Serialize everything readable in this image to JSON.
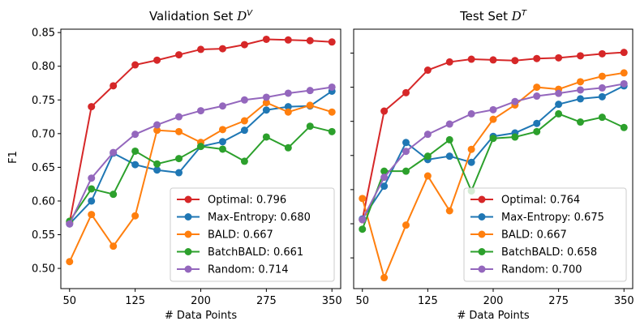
{
  "chart_data": {
    "type": "line",
    "x": [
      50,
      75,
      100,
      125,
      150,
      175,
      200,
      225,
      250,
      275,
      300,
      325,
      350
    ],
    "xticks": [
      50,
      125,
      200,
      275,
      350
    ],
    "xlabel": "# Data Points",
    "ylabel": "F1",
    "colors": {
      "Optimal": "#d62728",
      "Max-Entropy": "#1f77b4",
      "BALD": "#ff7f0e",
      "BatchBALD": "#2ca02c",
      "Random": "#9467bd"
    },
    "panels": [
      {
        "title": "Validation Set",
        "title_symbol": "D",
        "title_sup": "V",
        "ylim": [
          0.47,
          0.855
        ],
        "yticks": [
          0.5,
          0.55,
          0.6,
          0.65,
          0.7,
          0.75,
          0.8,
          0.85
        ],
        "show_yticklabels": true,
        "series": [
          {
            "name": "Optimal",
            "legend": "Optimal: 0.796",
            "values": [
              0.568,
              0.74,
              0.771,
              0.802,
              0.809,
              0.817,
              0.825,
              0.826,
              0.832,
              0.84,
              0.839,
              0.838,
              0.836
            ]
          },
          {
            "name": "Max-Entropy",
            "legend": "Max-Entropy: 0.680",
            "values": [
              0.566,
              0.6,
              0.671,
              0.654,
              0.646,
              0.642,
              0.681,
              0.688,
              0.705,
              0.735,
              0.74,
              0.741,
              0.763
            ]
          },
          {
            "name": "BALD",
            "legend": "BALD: 0.667",
            "values": [
              0.51,
              0.58,
              0.533,
              0.578,
              0.705,
              0.703,
              0.687,
              0.706,
              0.719,
              0.746,
              0.732,
              0.742,
              0.732
            ]
          },
          {
            "name": "BatchBALD",
            "legend": "BatchBALD: 0.661",
            "values": [
              0.57,
              0.618,
              0.61,
              0.674,
              0.655,
              0.663,
              0.681,
              0.677,
              0.659,
              0.695,
              0.679,
              0.711,
              0.703
            ]
          },
          {
            "name": "Random",
            "legend": "Random: 0.714",
            "values": [
              0.566,
              0.634,
              0.672,
              0.699,
              0.713,
              0.725,
              0.734,
              0.741,
              0.75,
              0.754,
              0.76,
              0.764,
              0.769
            ]
          }
        ]
      },
      {
        "title": "Test Set",
        "title_symbol": "D",
        "title_sup": "T",
        "ylim": [
          0.455,
          0.835
        ],
        "yticks": [
          0.5,
          0.55,
          0.6,
          0.65,
          0.7,
          0.75,
          0.8
        ],
        "show_yticklabels": false,
        "series": [
          {
            "name": "Optimal",
            "legend": "Optimal: 0.764",
            "values": [
              0.556,
              0.715,
              0.742,
              0.775,
              0.787,
              0.791,
              0.79,
              0.789,
              0.792,
              0.793,
              0.796,
              0.799,
              0.801
            ]
          },
          {
            "name": "Max-Entropy",
            "legend": "Max-Entropy: 0.675",
            "values": [
              0.557,
              0.605,
              0.669,
              0.644,
              0.649,
              0.64,
              0.678,
              0.683,
              0.697,
              0.725,
              0.733,
              0.736,
              0.752
            ]
          },
          {
            "name": "BALD",
            "legend": "BALD: 0.667",
            "values": [
              0.587,
              0.471,
              0.548,
              0.62,
              0.569,
              0.659,
              0.703,
              0.724,
              0.75,
              0.747,
              0.758,
              0.766,
              0.771
            ]
          },
          {
            "name": "BatchBALD",
            "legend": "BatchBALD: 0.658",
            "values": [
              0.542,
              0.627,
              0.627,
              0.649,
              0.673,
              0.598,
              0.675,
              0.677,
              0.685,
              0.711,
              0.699,
              0.706,
              0.691
            ]
          },
          {
            "name": "Random",
            "legend": "Random: 0.700",
            "values": [
              0.556,
              0.618,
              0.656,
              0.681,
              0.696,
              0.711,
              0.717,
              0.729,
              0.737,
              0.741,
              0.746,
              0.749,
              0.755
            ]
          }
        ]
      }
    ]
  }
}
